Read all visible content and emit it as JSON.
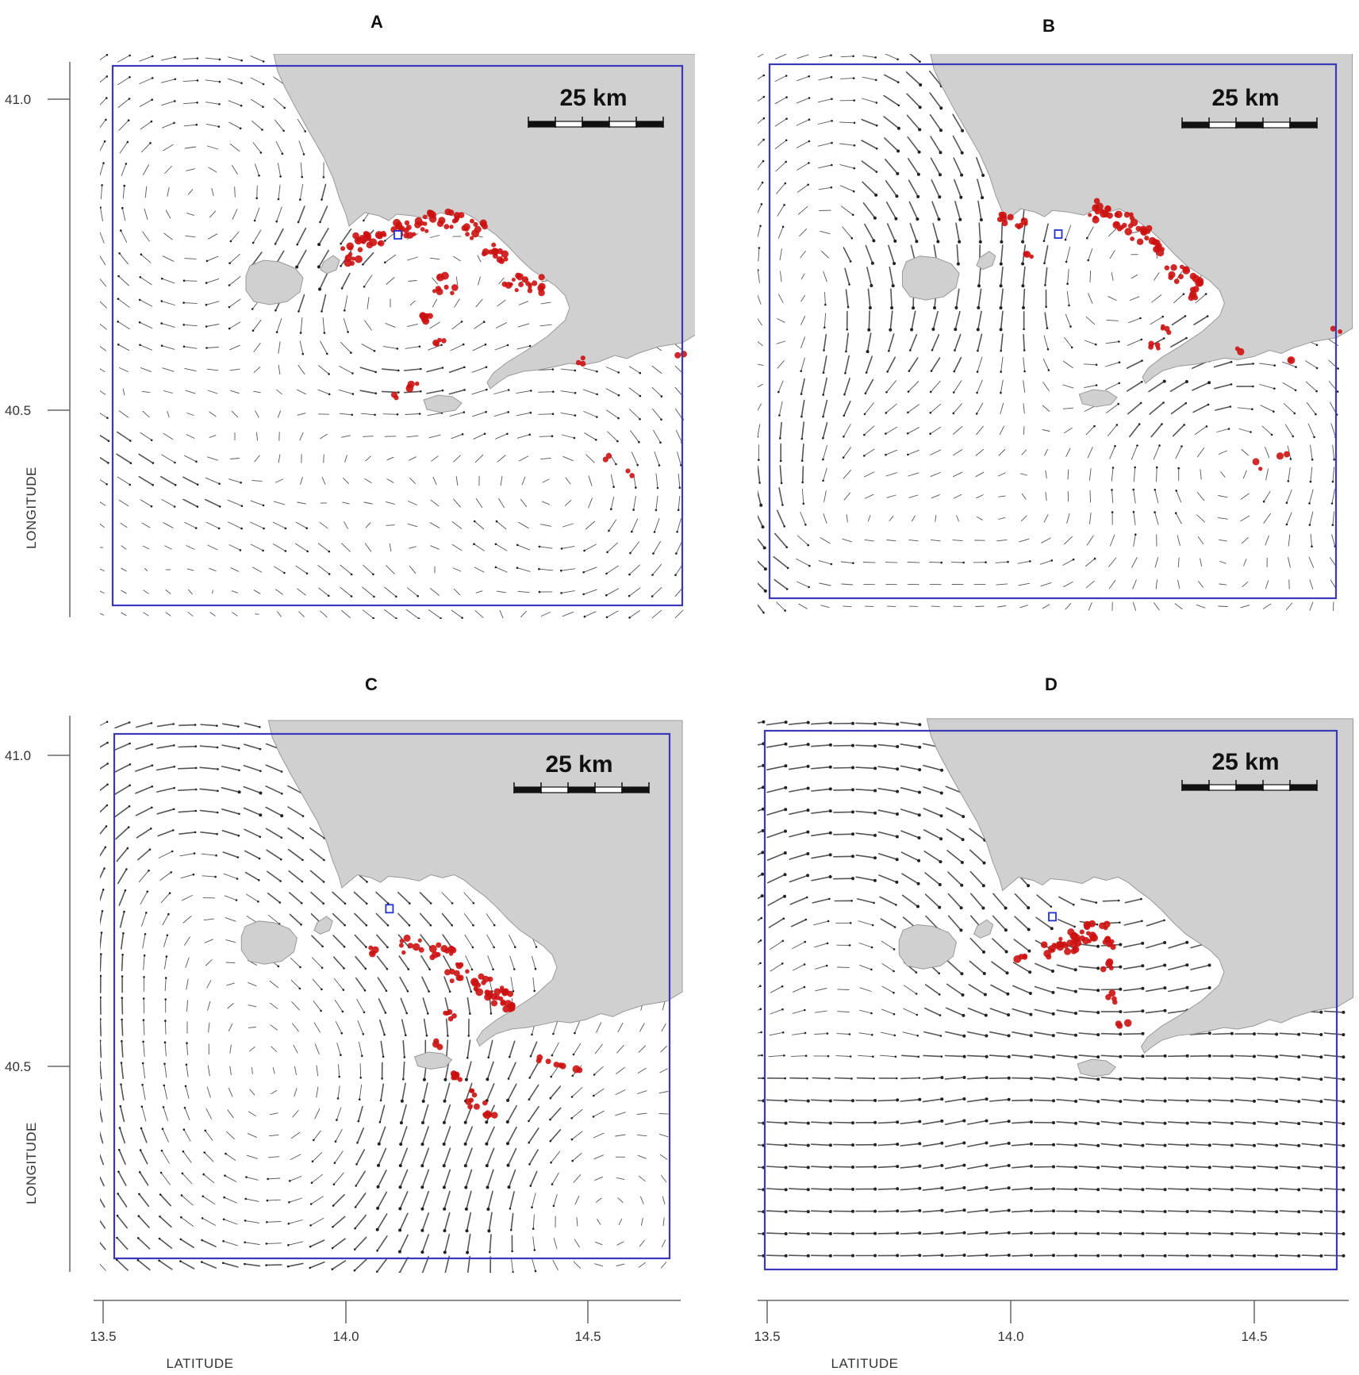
{
  "panels": [
    {
      "letter": "A",
      "scale_label": "25 km",
      "current_pattern": "eddies",
      "particles": "A"
    },
    {
      "letter": "B",
      "scale_label": "25 km",
      "current_pattern": "swirl",
      "particles": "B"
    },
    {
      "letter": "C",
      "scale_label": "25 km",
      "current_pattern": "gyre",
      "particles": "C"
    },
    {
      "letter": "D",
      "scale_label": "25 km",
      "current_pattern": "eastward",
      "particles": "D"
    }
  ],
  "axes": {
    "y_label": "LONGITUDE",
    "x_label": "LATITUDE",
    "y_ticks": [
      "41.0",
      "40.5"
    ],
    "x_ticks": [
      "13.5",
      "14.0",
      "14.5"
    ]
  },
  "colors": {
    "domain_box": "#3a3ab8",
    "land": "#d0d0d0",
    "particles": "#cc1111",
    "release_marker": "#2233cc",
    "arrows": "#555555"
  },
  "legend": {
    "items": [
      "release-point",
      "particles",
      "current-vectors",
      "land"
    ]
  }
}
